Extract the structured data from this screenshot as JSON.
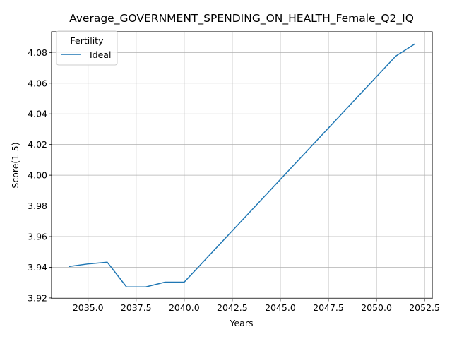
{
  "chart_data": {
    "type": "line",
    "title": "Average_GOVERNMENT_SPENDING_ON_HEALTH_Female_Q2_IQ",
    "xlabel": "Years",
    "ylabel": "Score(1-5)",
    "xlim": [
      2033.1,
      2052.9
    ],
    "ylim": [
      3.9195,
      4.0935
    ],
    "xticks": [
      2035.0,
      2037.5,
      2040.0,
      2042.5,
      2045.0,
      2047.5,
      2050.0,
      2052.5
    ],
    "xtick_labels": [
      "2035.0",
      "2037.5",
      "2040.0",
      "2042.5",
      "2045.0",
      "2047.5",
      "2050.0",
      "2052.5"
    ],
    "yticks": [
      3.92,
      3.94,
      3.96,
      3.98,
      4.0,
      4.02,
      4.04,
      4.06,
      4.08
    ],
    "ytick_labels": [
      "3.92",
      "3.94",
      "3.96",
      "3.98",
      "4.00",
      "4.02",
      "4.04",
      "4.06",
      "4.08"
    ],
    "grid": true,
    "legend": {
      "title": "Fertility",
      "position": "top-left"
    },
    "series": [
      {
        "name": "Ideal",
        "color": "#1f77b4",
        "x": [
          2034,
          2035,
          2036,
          2037,
          2038,
          2039,
          2040,
          2051,
          2052
        ],
        "y": [
          3.9405,
          3.9422,
          3.9433,
          3.9272,
          3.9272,
          3.9303,
          3.9303,
          4.0776,
          4.0856
        ]
      }
    ]
  }
}
